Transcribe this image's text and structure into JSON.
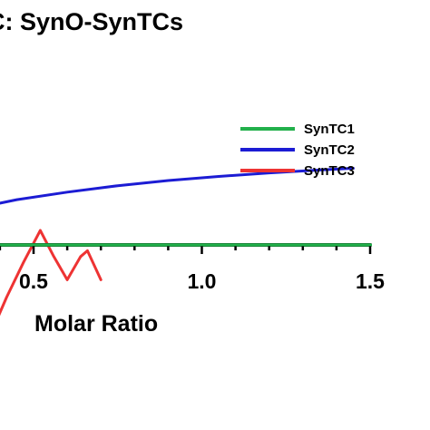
{
  "chart_data": {
    "type": "line",
    "title": "C: SynO-SynTCs",
    "xlabel": "Molar Ratio",
    "ylabel": "",
    "xlim": [
      0.3,
      1.5
    ],
    "x_ticks": [
      "0.5",
      "1.0",
      "1.5"
    ],
    "legend_position": "top-right",
    "grid": false,
    "series": [
      {
        "name": "SynTC1",
        "color": "#22b04b",
        "x": [
          0.3,
          0.5,
          0.7,
          0.9,
          1.1,
          1.3,
          1.5
        ],
        "y": [
          0,
          0,
          0,
          0,
          0,
          0,
          0
        ]
      },
      {
        "name": "SynTC2",
        "color": "#1c1cd4",
        "x": [
          0.3,
          0.45,
          0.6,
          0.75,
          0.9,
          1.05,
          1.2,
          1.35,
          1.45
        ],
        "y": [
          -6.0,
          -7.8,
          -9.1,
          -10.2,
          -11.1,
          -11.8,
          -12.4,
          -12.9,
          -13.2
        ]
      },
      {
        "name": "SynTC3",
        "color": "#ee3333",
        "x": [
          0.3,
          0.36,
          0.42,
          0.47,
          0.52,
          0.56,
          0.6,
          0.64,
          0.66,
          0.7
        ],
        "y": [
          22.0,
          17.0,
          9.0,
          3.0,
          -2.5,
          2.0,
          6.0,
          2.0,
          1.0,
          6.0
        ]
      }
    ]
  }
}
